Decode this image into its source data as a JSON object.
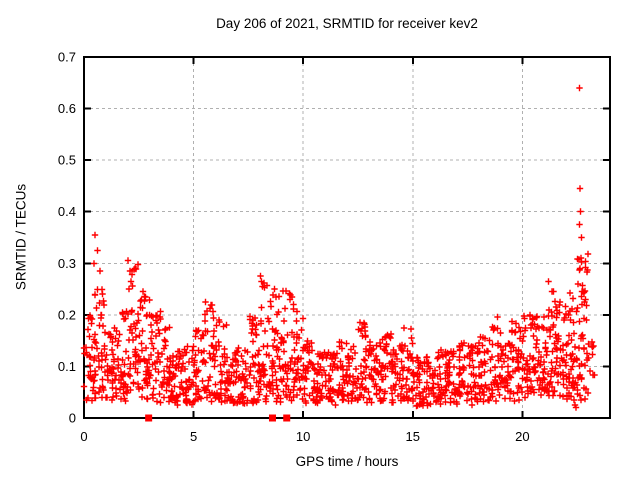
{
  "window": {
    "background": "#ffffff",
    "text_color": "#000000"
  },
  "chart_data": {
    "type": "scatter",
    "title": "Day 206 of 2021, SRMTID for receiver kev2",
    "xlabel": "GPS time / hours",
    "ylabel": "SRMTID / TECUs",
    "xlim": [
      0,
      24
    ],
    "ylim": [
      0,
      0.7
    ],
    "xticks": [
      0,
      5,
      10,
      15,
      20
    ],
    "yticks": [
      0,
      0.1,
      0.2,
      0.3,
      0.4,
      0.5,
      0.6,
      0.7
    ],
    "grid": true,
    "grid_style": "dashed",
    "grid_color": "#b0b0b0",
    "border_color": "#000000",
    "legend": "none",
    "marker": {
      "shape": "plus",
      "color": "#ff0000",
      "size": 7
    },
    "zero_marker": {
      "shape": "filled-square",
      "color": "#ff0000",
      "size": 7
    },
    "seed": 206,
    "bin_fields": [
      "x_start",
      "x_width",
      "count",
      "y_min",
      "y_median",
      "y_max"
    ],
    "bins": [
      [
        0.0,
        0.5,
        34,
        0.03,
        0.085,
        0.2
      ],
      [
        0.5,
        0.5,
        40,
        0.035,
        0.1,
        0.25
      ],
      [
        1.0,
        0.5,
        34,
        0.03,
        0.085,
        0.175
      ],
      [
        1.5,
        0.5,
        36,
        0.03,
        0.09,
        0.22
      ],
      [
        2.0,
        0.5,
        40,
        0.035,
        0.105,
        0.3
      ],
      [
        2.5,
        0.5,
        40,
        0.035,
        0.1,
        0.24
      ],
      [
        3.0,
        0.5,
        36,
        0.03,
        0.09,
        0.21
      ],
      [
        3.5,
        0.5,
        34,
        0.025,
        0.08,
        0.185
      ],
      [
        4.0,
        0.5,
        34,
        0.025,
        0.065,
        0.13
      ],
      [
        4.5,
        0.5,
        34,
        0.025,
        0.07,
        0.14
      ],
      [
        5.0,
        0.5,
        34,
        0.03,
        0.075,
        0.17
      ],
      [
        5.5,
        0.5,
        38,
        0.03,
        0.09,
        0.22
      ],
      [
        6.0,
        0.5,
        34,
        0.025,
        0.07,
        0.19
      ],
      [
        6.5,
        0.5,
        34,
        0.025,
        0.06,
        0.13
      ],
      [
        7.0,
        0.5,
        34,
        0.02,
        0.06,
        0.14
      ],
      [
        7.5,
        0.5,
        36,
        0.025,
        0.075,
        0.2
      ],
      [
        8.0,
        0.5,
        40,
        0.03,
        0.09,
        0.27
      ],
      [
        8.5,
        0.5,
        40,
        0.03,
        0.1,
        0.25
      ],
      [
        9.0,
        0.5,
        38,
        0.03,
        0.095,
        0.25
      ],
      [
        9.5,
        0.5,
        36,
        0.03,
        0.085,
        0.23
      ],
      [
        10.0,
        0.5,
        34,
        0.025,
        0.07,
        0.15
      ],
      [
        10.5,
        0.5,
        34,
        0.025,
        0.065,
        0.13
      ],
      [
        11.0,
        0.5,
        34,
        0.025,
        0.07,
        0.13
      ],
      [
        11.5,
        0.5,
        34,
        0.03,
        0.075,
        0.15
      ],
      [
        12.0,
        0.5,
        34,
        0.03,
        0.075,
        0.14
      ],
      [
        12.5,
        0.5,
        36,
        0.03,
        0.08,
        0.185
      ],
      [
        13.0,
        0.5,
        34,
        0.025,
        0.07,
        0.15
      ],
      [
        13.5,
        0.5,
        34,
        0.03,
        0.075,
        0.165
      ],
      [
        14.0,
        0.5,
        34,
        0.025,
        0.07,
        0.14
      ],
      [
        14.5,
        0.5,
        34,
        0.03,
        0.075,
        0.175
      ],
      [
        15.0,
        0.5,
        34,
        0.02,
        0.06,
        0.12
      ],
      [
        15.5,
        0.5,
        34,
        0.02,
        0.06,
        0.13
      ],
      [
        16.0,
        0.5,
        34,
        0.025,
        0.06,
        0.135
      ],
      [
        16.5,
        0.5,
        34,
        0.025,
        0.065,
        0.13
      ],
      [
        17.0,
        0.5,
        34,
        0.025,
        0.07,
        0.15
      ],
      [
        17.5,
        0.5,
        34,
        0.025,
        0.07,
        0.14
      ],
      [
        18.0,
        0.5,
        34,
        0.03,
        0.075,
        0.16
      ],
      [
        18.5,
        0.5,
        36,
        0.03,
        0.085,
        0.2
      ],
      [
        19.0,
        0.5,
        34,
        0.03,
        0.08,
        0.16
      ],
      [
        19.5,
        0.5,
        36,
        0.03,
        0.09,
        0.19
      ],
      [
        20.0,
        0.5,
        38,
        0.035,
        0.095,
        0.21
      ],
      [
        20.5,
        0.5,
        38,
        0.04,
        0.1,
        0.2
      ],
      [
        21.0,
        0.5,
        42,
        0.04,
        0.105,
        0.26
      ],
      [
        21.5,
        0.5,
        42,
        0.04,
        0.105,
        0.235
      ],
      [
        22.0,
        0.5,
        44,
        0.035,
        0.105,
        0.25
      ],
      [
        22.5,
        0.5,
        48,
        0.03,
        0.12,
        0.33
      ],
      [
        23.0,
        0.3,
        10,
        0.05,
        0.1,
        0.15
      ]
    ],
    "outliers": [
      [
        0.5,
        0.355
      ],
      [
        0.62,
        0.325
      ],
      [
        0.45,
        0.3
      ],
      [
        0.72,
        0.285
      ],
      [
        0.85,
        0.24
      ],
      [
        2.0,
        0.305
      ],
      [
        2.1,
        0.285
      ],
      [
        2.15,
        0.265
      ],
      [
        2.05,
        0.25
      ],
      [
        2.7,
        0.245
      ],
      [
        2.8,
        0.235
      ],
      [
        5.55,
        0.225
      ],
      [
        6.15,
        0.19
      ],
      [
        8.05,
        0.275
      ],
      [
        8.1,
        0.265
      ],
      [
        8.15,
        0.255
      ],
      [
        8.7,
        0.25
      ],
      [
        8.75,
        0.235
      ],
      [
        9.5,
        0.235
      ],
      [
        9.55,
        0.22
      ],
      [
        12.6,
        0.185
      ],
      [
        14.6,
        0.175
      ],
      [
        21.2,
        0.265
      ],
      [
        22.35,
        0.035
      ],
      [
        22.4,
        0.025
      ],
      [
        22.45,
        0.02
      ],
      [
        22.6,
        0.64
      ],
      [
        22.62,
        0.445
      ],
      [
        22.66,
        0.4
      ],
      [
        22.6,
        0.375
      ],
      [
        22.7,
        0.35
      ],
      [
        22.68,
        0.31
      ],
      [
        22.64,
        0.29
      ],
      [
        22.55,
        0.26
      ],
      [
        22.72,
        0.245
      ]
    ],
    "zero_markers": [
      2.95,
      8.6,
      9.25
    ]
  }
}
